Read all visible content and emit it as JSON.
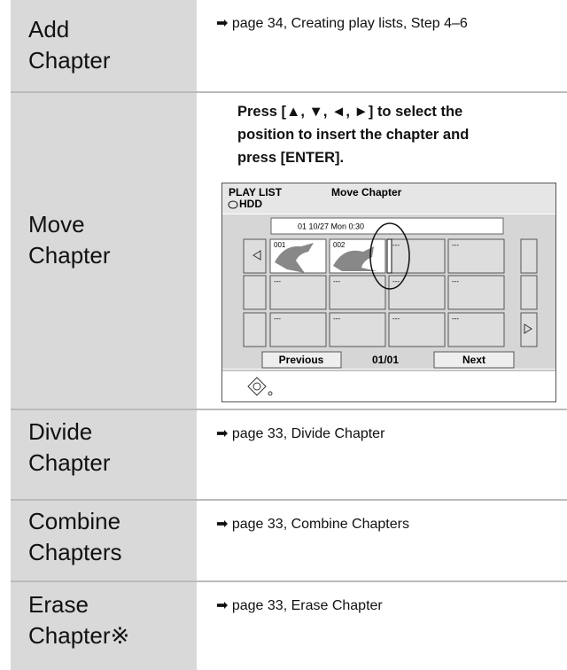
{
  "table": {
    "rows": [
      {
        "label": [
          "Add",
          "Chapter"
        ],
        "text": "➡ page 34, Creating play lists, Step 4–6"
      },
      {
        "label": [
          "Move",
          "Chapter"
        ],
        "instruction": [
          "Press [▲, ▼, ◄, ►] to select the",
          "position to insert the chapter and",
          "press [ENTER]."
        ]
      },
      {
        "label": [
          "Divide",
          "Chapter"
        ],
        "text": "➡ page 33, Divide Chapter"
      },
      {
        "label": [
          "Combine",
          "Chapters"
        ],
        "text": "➡ page 33, Combine Chapters"
      },
      {
        "label": [
          "Erase",
          "Chapter※"
        ],
        "text": "➡ page 33, Erase Chapter"
      }
    ]
  },
  "screen": {
    "header": "PLAY LIST",
    "title": "Move Chapter",
    "drive": "HDD",
    "date": "01 10/27 Mon 0:30",
    "cells": [
      [
        "001",
        "002",
        "---",
        "---"
      ],
      [
        "---",
        "---",
        "---",
        "---"
      ],
      [
        "---",
        "---",
        "---",
        "---"
      ]
    ],
    "previous": "Previous",
    "page": "01/01",
    "next": "Next"
  }
}
